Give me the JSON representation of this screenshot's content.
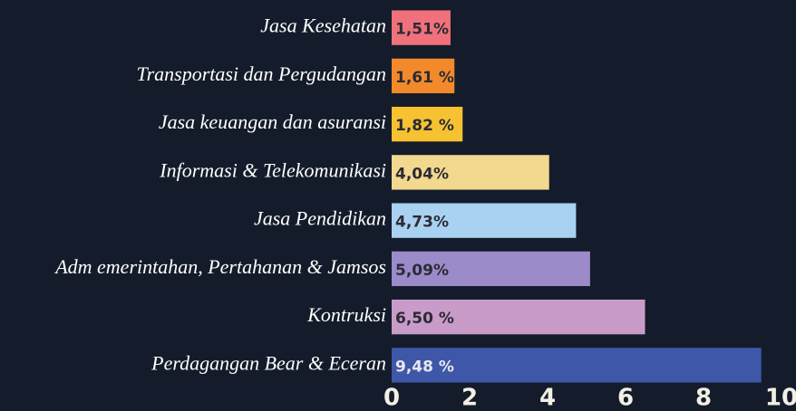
{
  "chart_data": {
    "type": "bar",
    "orientation": "horizontal",
    "categories": [
      "Jasa Kesehatan",
      "Transportasi dan Pergudangan",
      "Jasa keuangan dan asuransi",
      "Informasi & Telekomunikasi",
      "Jasa Pendidikan",
      "Adm emerintahan, Pertahanan & Jamsos",
      "Kontruksi",
      "Perdagangan Bear & Eceran"
    ],
    "values": [
      1.51,
      1.61,
      1.82,
      4.04,
      4.73,
      5.09,
      6.5,
      9.48
    ],
    "value_labels": [
      "1,51%",
      "1,61 %",
      "1,82 %",
      "4,04%",
      "4,73%",
      "5,09%",
      "6,50 %",
      "9,48 %"
    ],
    "colors": [
      "#f0717b",
      "#f28a2c",
      "#f6c232",
      "#f2d98f",
      "#a9d1f2",
      "#9b8bc9",
      "#c99bc9",
      "#3f57a9"
    ],
    "xlim": [
      0,
      10
    ],
    "xticks": [
      0,
      2,
      4,
      6,
      8,
      10
    ]
  }
}
